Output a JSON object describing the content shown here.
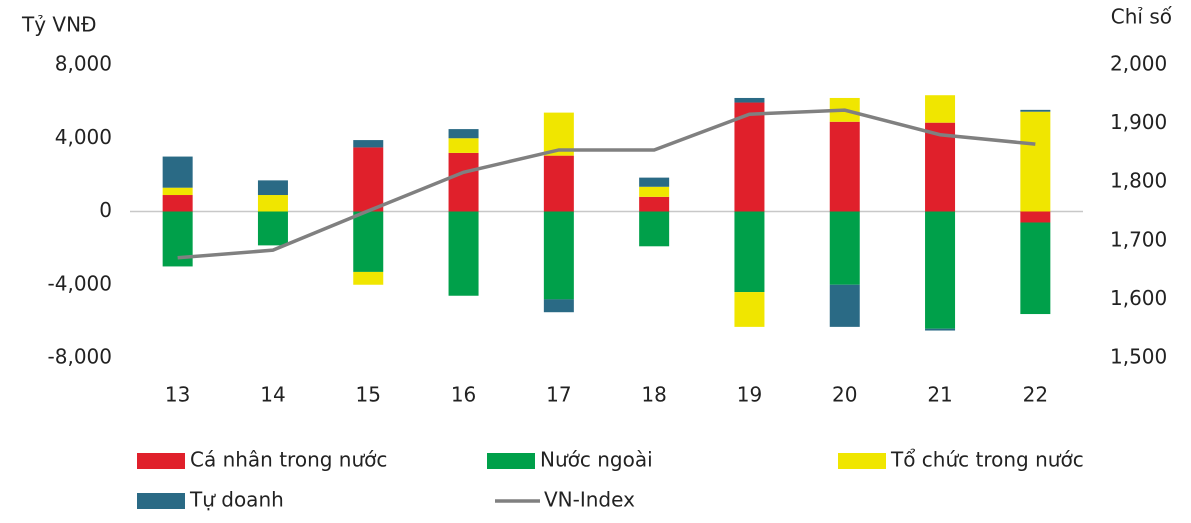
{
  "chart_data": {
    "type": "bar",
    "stacked": true,
    "y_label": "Tỷ VNĐ",
    "y2_label": "Chỉ số",
    "categories": [
      "13",
      "14",
      "15",
      "16",
      "17",
      "18",
      "19",
      "20",
      "21",
      "22"
    ],
    "series": [
      {
        "name": "Cá nhân trong nước",
        "color": "#e0202b",
        "values": [
          900,
          0,
          3500,
          3200,
          3050,
          800,
          5950,
          4900,
          4850,
          -600
        ]
      },
      {
        "name": "Nước ngoài",
        "color": "#00a04a",
        "values": [
          -3000,
          -1850,
          -3300,
          -4600,
          -4800,
          -1900,
          -4400,
          -4000,
          -6400,
          -5000
        ]
      },
      {
        "name": "Tổ chức trong nước",
        "color": "#f0e600",
        "values": [
          400,
          900,
          -700,
          800,
          2350,
          550,
          -1900,
          1300,
          1500,
          5450
        ]
      },
      {
        "name": "Tự doanh",
        "color": "#2a6a85",
        "values": [
          1700,
          800,
          400,
          500,
          -700,
          500,
          250,
          -2300,
          -100,
          100
        ]
      },
      {
        "name": "VN-Index",
        "color": "#808080",
        "type": "line",
        "axis": "y2",
        "values": [
          1671,
          1684,
          1751,
          1817,
          1855,
          1855,
          1916,
          1923,
          1881,
          1865
        ]
      }
    ],
    "ylim": [
      -8000,
      8000
    ],
    "yticks": [
      {
        "value": -8000,
        "label": "-8,000"
      },
      {
        "value": -4000,
        "label": "-4,000"
      },
      0,
      {
        "value": 4000,
        "label": "4,000"
      },
      {
        "value": 8000,
        "label": "8,000"
      }
    ],
    "y2lim": [
      1500,
      2000
    ],
    "y2ticks": [
      {
        "value": 1500,
        "label": "1,500"
      },
      {
        "value": 1600,
        "label": "1,600"
      },
      {
        "value": 1700,
        "label": "1,700"
      },
      {
        "value": 1800,
        "label": "1,800"
      },
      {
        "value": 1900,
        "label": "1,900"
      },
      {
        "value": 2000,
        "label": "2,000"
      }
    ],
    "legend": "bottom"
  }
}
